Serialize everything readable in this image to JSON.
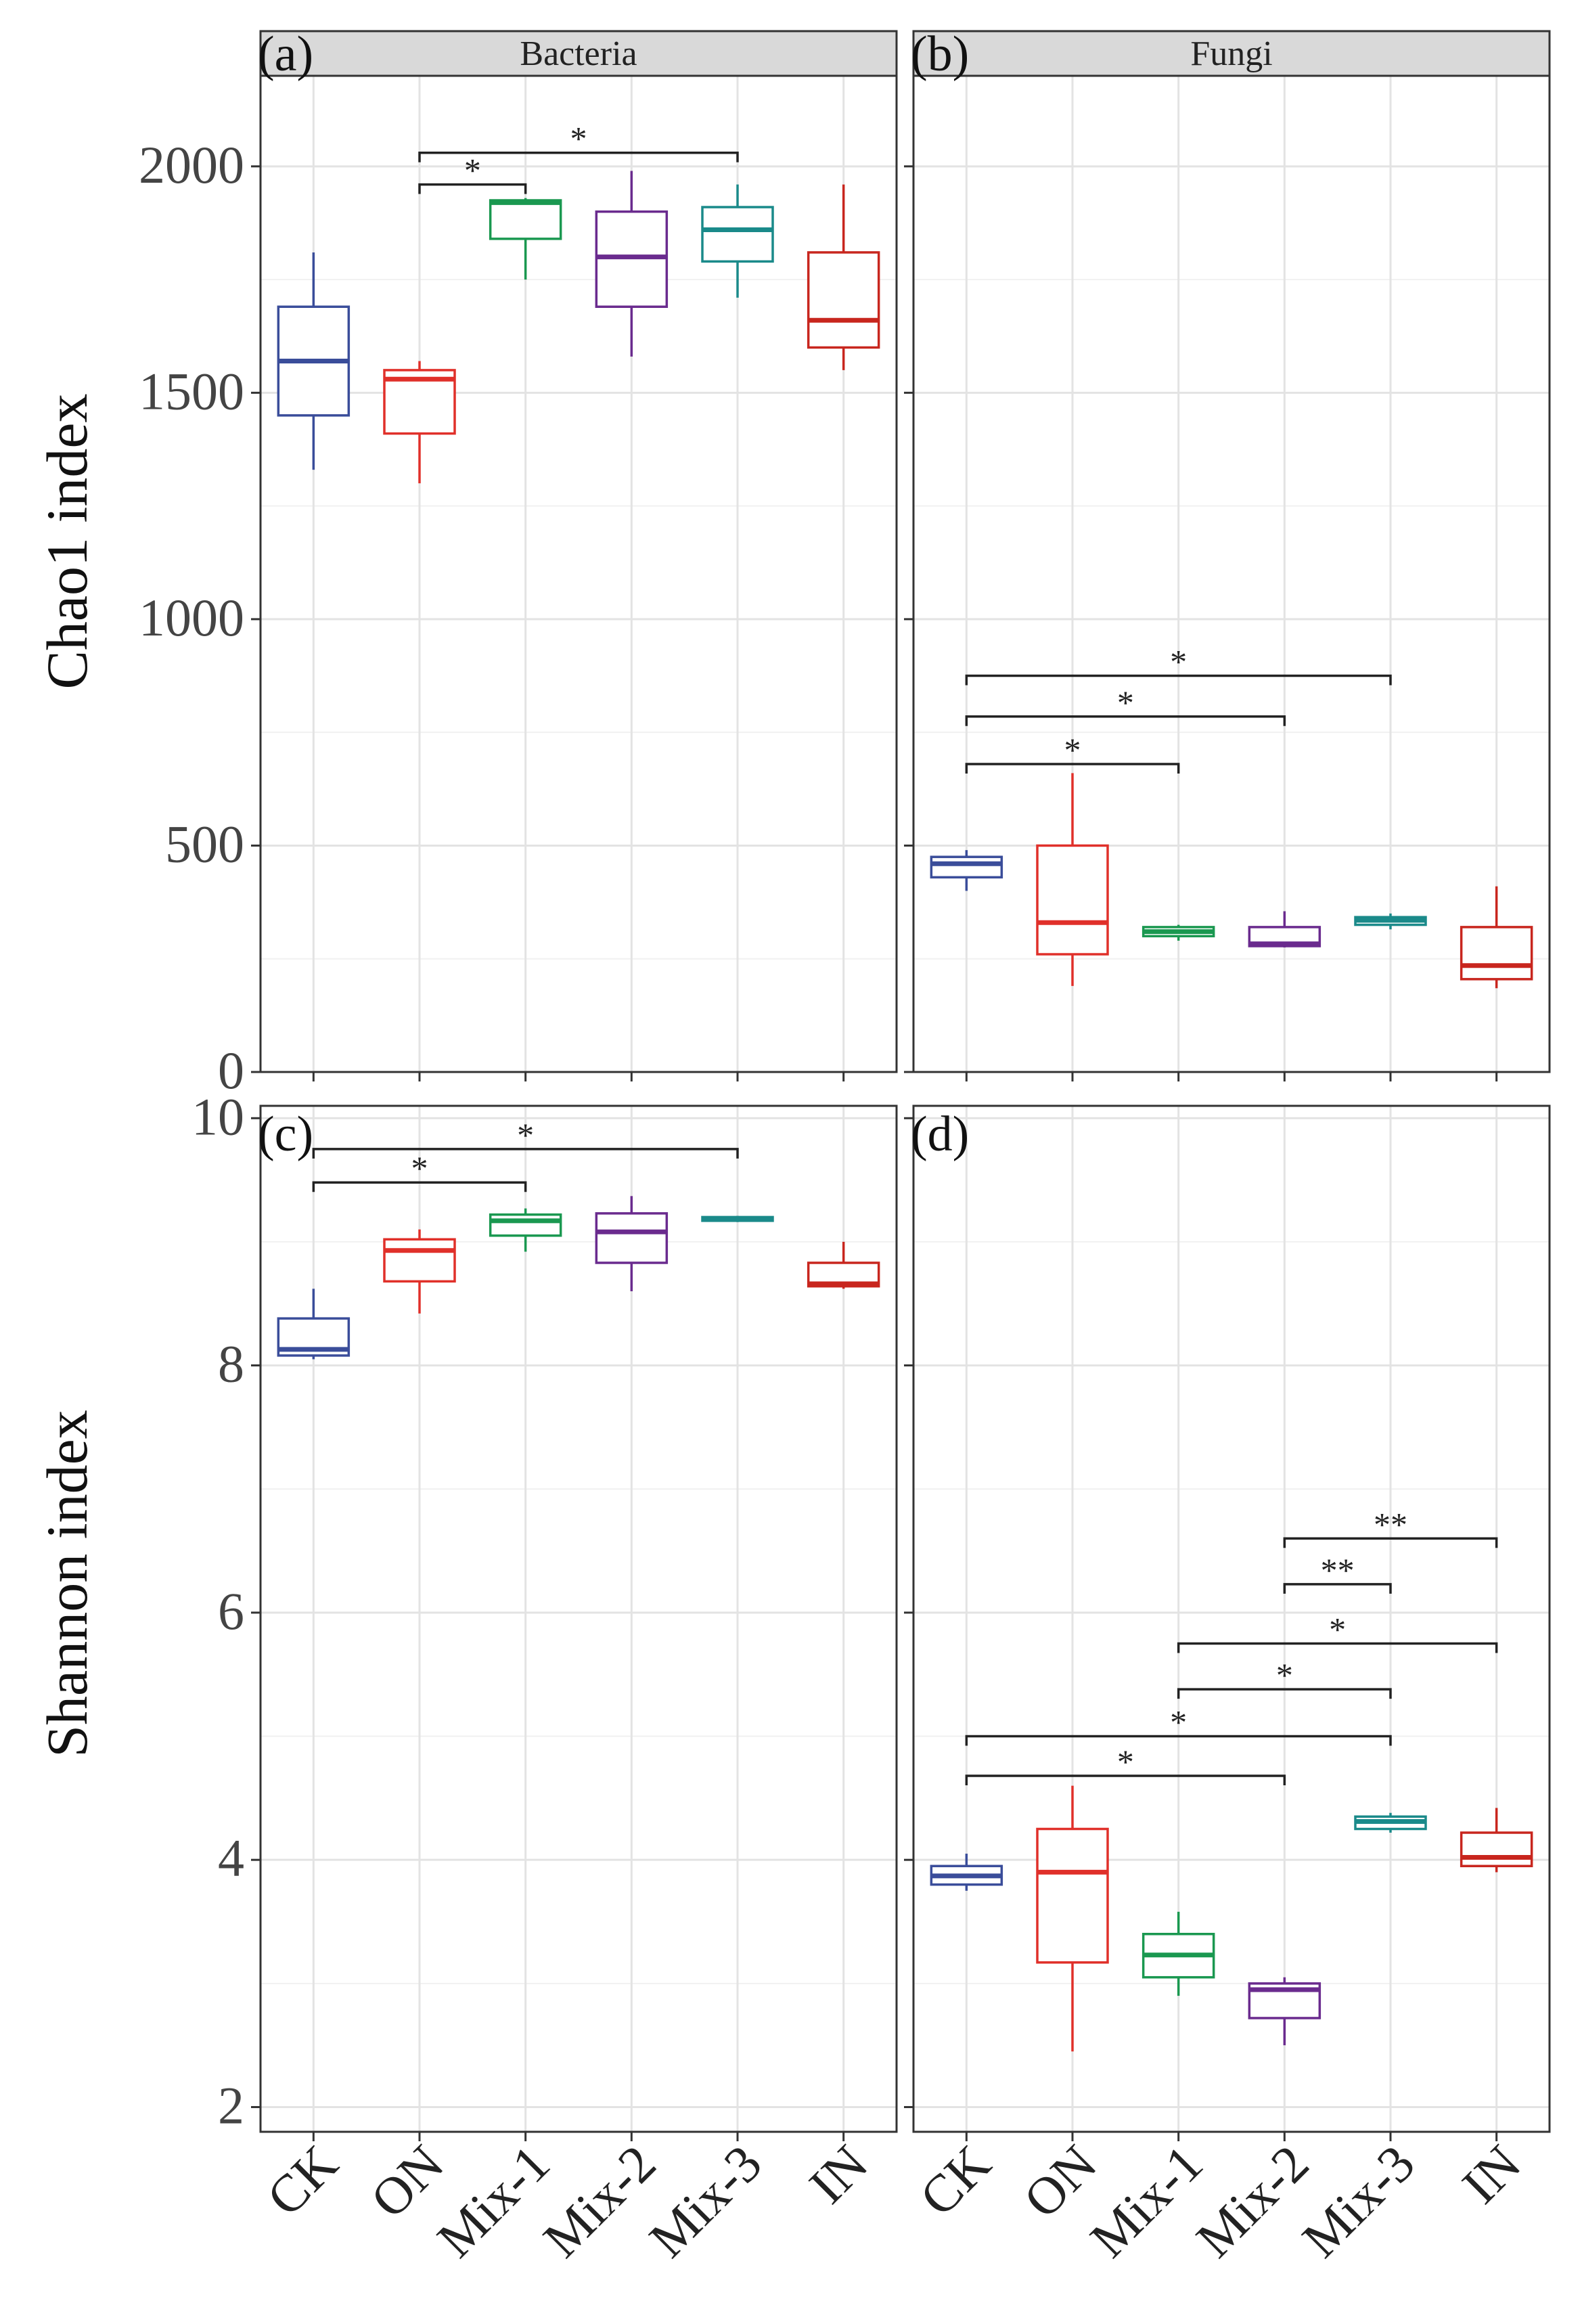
{
  "y_titles": [
    "Chao1 index",
    "Shannon index"
  ],
  "strips": [
    "Bacteria",
    "Fungi"
  ],
  "categories": [
    "CK",
    "ON",
    "Mix-1",
    "Mix-2",
    "Mix-3",
    "IN"
  ],
  "colors": [
    "#3a4d9a",
    "#e0302a",
    "#1a9850",
    "#6a2b8e",
    "#1a8a8a",
    "#c8261e"
  ],
  "chart_data": [
    {
      "type": "box",
      "panel_label": "(a)",
      "strip": "Bacteria",
      "ylabel": "Chao1 index",
      "ylim": [
        0,
        2200
      ],
      "yticks": [
        0,
        500,
        1000,
        1500,
        2000
      ],
      "categories": [
        "CK",
        "ON",
        "Mix-1",
        "Mix-2",
        "Mix-3",
        "IN"
      ],
      "boxes": [
        {
          "category": "CK",
          "min": 1330,
          "q1": 1450,
          "median": 1570,
          "q3": 1690,
          "max": 1810
        },
        {
          "category": "ON",
          "min": 1300,
          "q1": 1410,
          "median": 1530,
          "q3": 1550,
          "max": 1570
        },
        {
          "category": "Mix-1",
          "min": 1750,
          "q1": 1840,
          "median": 1920,
          "q3": 1925,
          "max": 1930
        },
        {
          "category": "Mix-2",
          "min": 1580,
          "q1": 1690,
          "median": 1800,
          "q3": 1900,
          "max": 1990
        },
        {
          "category": "Mix-3",
          "min": 1710,
          "q1": 1790,
          "median": 1860,
          "q3": 1910,
          "max": 1960
        },
        {
          "category": "IN",
          "min": 1550,
          "q1": 1600,
          "median": 1660,
          "q3": 1810,
          "max": 1960
        }
      ],
      "significance": [
        {
          "from": "ON",
          "to": "Mix-1",
          "y": 1960,
          "label": "*"
        },
        {
          "from": "ON",
          "to": "Mix-3",
          "y": 2030,
          "label": "*"
        }
      ]
    },
    {
      "type": "box",
      "panel_label": "(b)",
      "strip": "Fungi",
      "ylim": [
        0,
        2200
      ],
      "yticks": [
        0,
        500,
        1000,
        1500,
        2000
      ],
      "categories": [
        "CK",
        "ON",
        "Mix-1",
        "Mix-2",
        "Mix-3",
        "IN"
      ],
      "boxes": [
        {
          "category": "CK",
          "min": 400,
          "q1": 430,
          "median": 460,
          "q3": 475,
          "max": 490
        },
        {
          "category": "ON",
          "min": 190,
          "q1": 260,
          "median": 330,
          "q3": 500,
          "max": 660
        },
        {
          "category": "Mix-1",
          "min": 290,
          "q1": 300,
          "median": 310,
          "q3": 320,
          "max": 325
        },
        {
          "category": "Mix-2",
          "min": 275,
          "q1": 278,
          "median": 283,
          "q3": 320,
          "max": 355
        },
        {
          "category": "Mix-3",
          "min": 315,
          "q1": 325,
          "median": 335,
          "q3": 342,
          "max": 350
        },
        {
          "category": "IN",
          "min": 185,
          "q1": 205,
          "median": 235,
          "q3": 320,
          "max": 410
        }
      ],
      "significance": [
        {
          "from": "CK",
          "to": "Mix-1",
          "y": 680,
          "label": "*"
        },
        {
          "from": "CK",
          "to": "Mix-2",
          "y": 785,
          "label": "*"
        },
        {
          "from": "CK",
          "to": "Mix-3",
          "y": 875,
          "label": "*"
        }
      ]
    },
    {
      "type": "box",
      "panel_label": "(c)",
      "ylabel": "Shannon index",
      "ylim": [
        1.8,
        10.1
      ],
      "yticks": [
        2,
        4,
        6,
        8,
        10
      ],
      "categories": [
        "CK",
        "ON",
        "Mix-1",
        "Mix-2",
        "Mix-3",
        "IN"
      ],
      "boxes": [
        {
          "category": "CK",
          "min": 8.05,
          "q1": 8.08,
          "median": 8.13,
          "q3": 8.38,
          "max": 8.62
        },
        {
          "category": "ON",
          "min": 8.42,
          "q1": 8.68,
          "median": 8.93,
          "q3": 9.02,
          "max": 9.1
        },
        {
          "category": "Mix-1",
          "min": 8.92,
          "q1": 9.05,
          "median": 9.17,
          "q3": 9.22,
          "max": 9.27
        },
        {
          "category": "Mix-2",
          "min": 8.6,
          "q1": 8.83,
          "median": 9.08,
          "q3": 9.23,
          "max": 9.37
        },
        {
          "category": "Mix-3",
          "min": 9.16,
          "q1": 9.17,
          "median": 9.18,
          "q3": 9.2,
          "max": 9.21
        },
        {
          "category": "IN",
          "min": 8.62,
          "q1": 8.64,
          "median": 8.66,
          "q3": 8.83,
          "max": 9.0
        }
      ],
      "significance": [
        {
          "from": "CK",
          "to": "Mix-1",
          "y": 9.48,
          "label": "*"
        },
        {
          "from": "CK",
          "to": "Mix-3",
          "y": 9.75,
          "label": "*"
        }
      ]
    },
    {
      "type": "box",
      "panel_label": "(d)",
      "ylim": [
        1.8,
        10.1
      ],
      "yticks": [
        2,
        4,
        6,
        8,
        10
      ],
      "categories": [
        "CK",
        "ON",
        "Mix-1",
        "Mix-2",
        "Mix-3",
        "IN"
      ],
      "boxes": [
        {
          "category": "CK",
          "min": 3.75,
          "q1": 3.8,
          "median": 3.87,
          "q3": 3.95,
          "max": 4.05
        },
        {
          "category": "ON",
          "min": 2.45,
          "q1": 3.17,
          "median": 3.9,
          "q3": 4.25,
          "max": 4.6
        },
        {
          "category": "Mix-1",
          "min": 2.9,
          "q1": 3.05,
          "median": 3.23,
          "q3": 3.4,
          "max": 3.58
        },
        {
          "category": "Mix-2",
          "min": 2.5,
          "q1": 2.72,
          "median": 2.95,
          "q3": 3.0,
          "max": 3.05
        },
        {
          "category": "Mix-3",
          "min": 4.22,
          "q1": 4.25,
          "median": 4.31,
          "q3": 4.35,
          "max": 4.38
        },
        {
          "category": "IN",
          "min": 3.9,
          "q1": 3.95,
          "median": 4.02,
          "q3": 4.22,
          "max": 4.42
        }
      ],
      "significance": [
        {
          "from": "CK",
          "to": "Mix-2",
          "y": 4.68,
          "label": "*"
        },
        {
          "from": "CK",
          "to": "Mix-3",
          "y": 5.0,
          "label": "*"
        },
        {
          "from": "Mix-1",
          "to": "Mix-3",
          "y": 5.38,
          "label": "*"
        },
        {
          "from": "Mix-1",
          "to": "IN",
          "y": 5.75,
          "label": "*"
        },
        {
          "from": "Mix-2",
          "to": "Mix-3",
          "y": 6.23,
          "label": "**"
        },
        {
          "from": "Mix-2",
          "to": "IN",
          "y": 6.6,
          "label": "**"
        }
      ]
    }
  ]
}
